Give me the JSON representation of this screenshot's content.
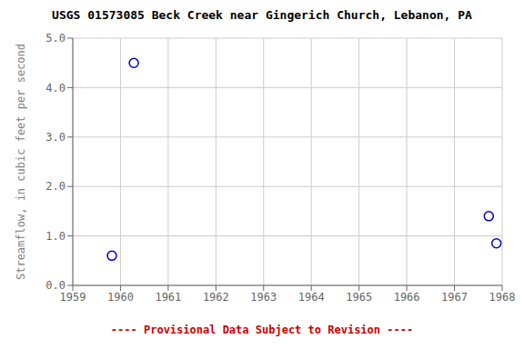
{
  "chart_data": {
    "type": "scatter",
    "title": "USGS 01573085 Beck Creek near Gingerich Church, Lebanon, PA",
    "y_label": "Streamflow, in cubic feet per second",
    "annotation": {
      "text": "---- Provisional Data Subject to Revision ----",
      "color": "#cc0000"
    },
    "x": [
      1959.82,
      1960.28,
      1967.72,
      1967.88
    ],
    "values": [
      0.6,
      4.5,
      1.4,
      0.85
    ],
    "color": "#0000cc",
    "marker": "open_circle",
    "xlim": [
      1959,
      1968
    ],
    "ylim": [
      0.0,
      5.0
    ],
    "xticks": [
      1959,
      1960,
      1961,
      1962,
      1963,
      1964,
      1965,
      1966,
      1967,
      1968
    ],
    "yticks": [
      {
        "value": 0.0,
        "label": "0.0"
      },
      {
        "value": 1.0,
        "label": "1.0"
      },
      {
        "value": 2.0,
        "label": "2.0"
      },
      {
        "value": 3.0,
        "label": "3.0"
      },
      {
        "value": 4.0,
        "label": "4.0"
      },
      {
        "value": 5.0,
        "label": "5.0"
      }
    ],
    "grid": true
  }
}
